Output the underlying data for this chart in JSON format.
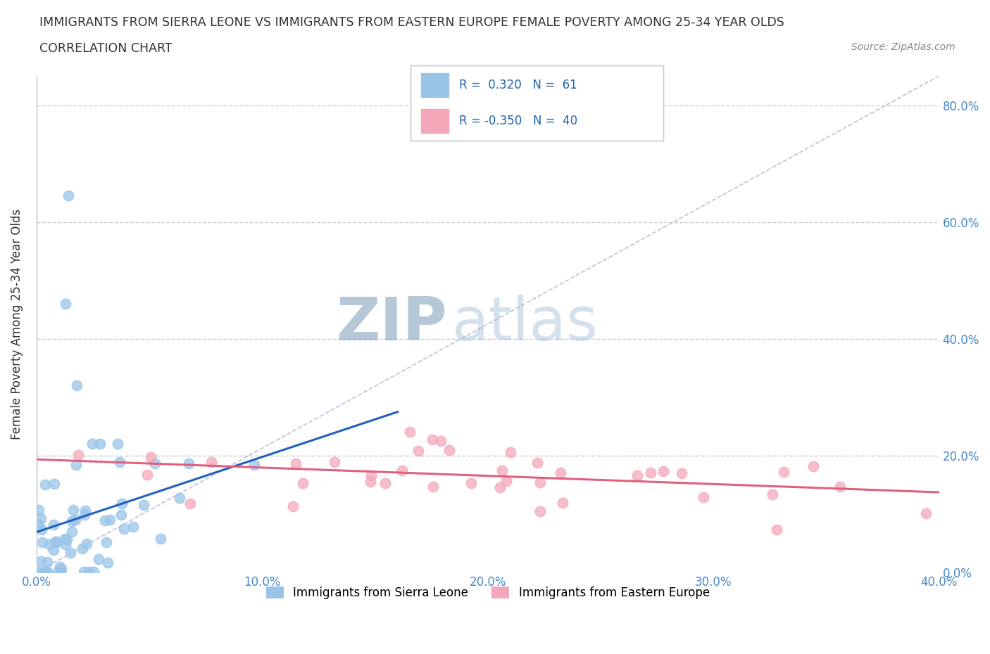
{
  "title_line1": "IMMIGRANTS FROM SIERRA LEONE VS IMMIGRANTS FROM EASTERN EUROPE FEMALE POVERTY AMONG 25-34 YEAR OLDS",
  "title_line2": "CORRELATION CHART",
  "source": "Source: ZipAtlas.com",
  "ylabel": "Female Poverty Among 25-34 Year Olds",
  "watermark_zip": "ZIP",
  "watermark_atlas": "atlas",
  "legend1_label": "Immigrants from Sierra Leone",
  "legend2_label": "Immigrants from Eastern Europe",
  "R1": 0.32,
  "N1": 61,
  "R2": -0.35,
  "N2": 40,
  "color1": "#99c4e8",
  "color2": "#f4a7b9",
  "line1_color": "#2060c0",
  "line2_color": "#e06080",
  "bg_color": "#ffffff",
  "grid_color": "#cccccc",
  "xlim": [
    0.0,
    0.4
  ],
  "ylim": [
    0.0,
    0.85
  ],
  "xtick_vals": [
    0.0,
    0.1,
    0.2,
    0.3,
    0.4
  ],
  "ytick_vals": [
    0.0,
    0.2,
    0.4,
    0.6,
    0.8
  ],
  "ytick_right_labels": [
    "0.0%",
    "20.0%",
    "40.0%",
    "60.0%",
    "80.0%"
  ],
  "xtick_labels": [
    "0.0%",
    "10.0%",
    "20.0%",
    "30.0%",
    "40.0%"
  ]
}
